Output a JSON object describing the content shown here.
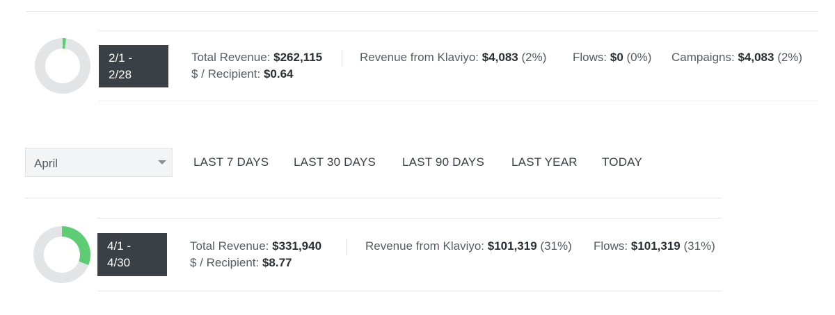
{
  "top_period": {
    "date_range": {
      "line1": "2/1 -",
      "line2": "2/28"
    },
    "donut_fraction": 0.02,
    "donut_color": "#5ccd73",
    "track_color": "#e2e4e6",
    "total_revenue": {
      "label": "Total Revenue:",
      "value": "$262,115"
    },
    "per_recipient": {
      "label": "$ / Recipient:",
      "value": "$0.64"
    },
    "klaviyo_revenue": {
      "label": "Revenue from Klaviyo:",
      "value": "$4,083",
      "pct": "(2%)"
    },
    "flows": {
      "label": "Flows:",
      "value": "$0",
      "pct": "(0%)"
    },
    "campaigns": {
      "label": "Campaigns:",
      "value": "$4,083",
      "pct": "(2%)"
    }
  },
  "filters": {
    "month_select": {
      "value": "April"
    },
    "ranges": [
      "LAST 7 DAYS",
      "LAST 30 DAYS",
      "LAST 90 DAYS",
      "LAST YEAR",
      "TODAY"
    ]
  },
  "bottom_period": {
    "date_range": {
      "line1": "4/1 -",
      "line2": "4/30"
    },
    "donut_fraction": 0.31,
    "donut_color": "#5ccd73",
    "track_color": "#e2e4e6",
    "total_revenue": {
      "label": "Total Revenue:",
      "value": "$331,940"
    },
    "per_recipient": {
      "label": "$ / Recipient:",
      "value": "$8.77"
    },
    "klaviyo_revenue": {
      "label": "Revenue from Klaviyo:",
      "value": "$101,319",
      "pct": "(31%)"
    },
    "flows": {
      "label": "Flows:",
      "value": "$101,319",
      "pct": "(31%)"
    }
  }
}
